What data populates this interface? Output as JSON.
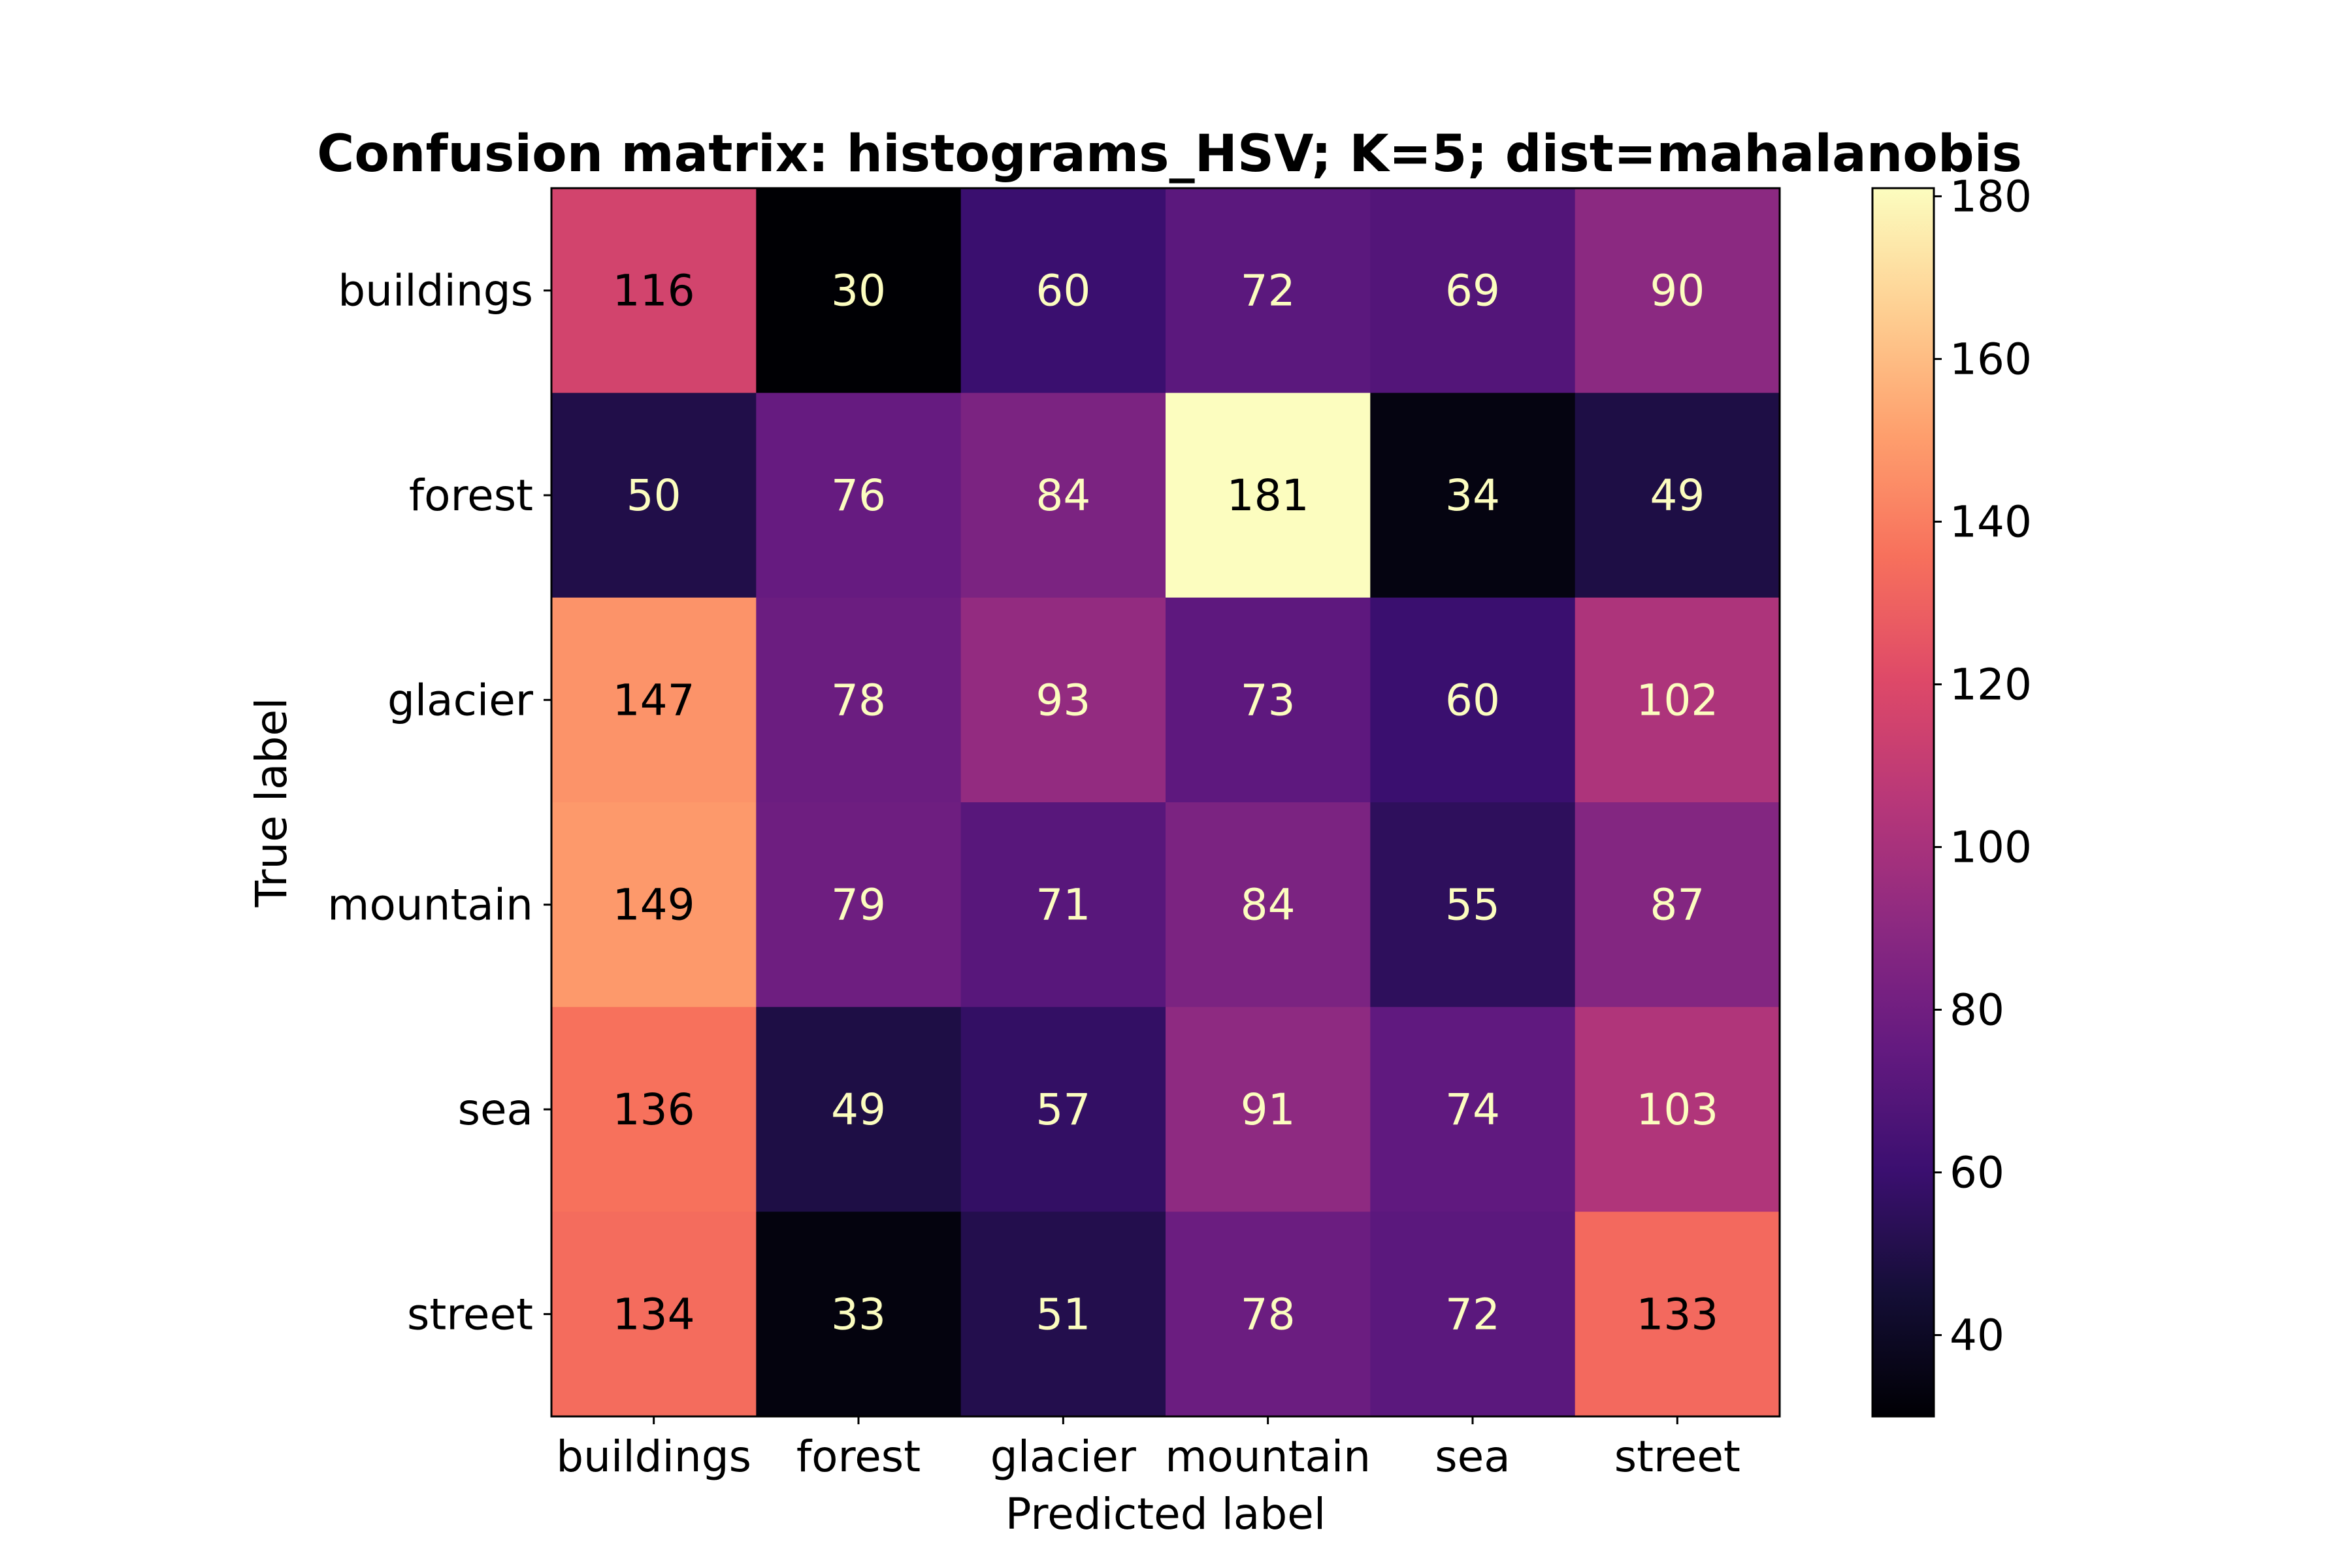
{
  "chart_data": {
    "type": "heatmap",
    "title": "Confusion matrix: histograms_HSV; K=5; dist=mahalanobis",
    "xlabel": "Predicted label",
    "ylabel": "True label",
    "x_categories": [
      "buildings",
      "forest",
      "glacier",
      "mountain",
      "sea",
      "street"
    ],
    "y_categories": [
      "buildings",
      "forest",
      "glacier",
      "mountain",
      "sea",
      "street"
    ],
    "values": [
      [
        116,
        30,
        60,
        72,
        69,
        90
      ],
      [
        50,
        76,
        84,
        181,
        34,
        49
      ],
      [
        147,
        78,
        93,
        73,
        60,
        102
      ],
      [
        149,
        79,
        71,
        84,
        55,
        87
      ],
      [
        136,
        49,
        57,
        91,
        74,
        103
      ],
      [
        134,
        33,
        51,
        78,
        72,
        133
      ]
    ],
    "colormap": "magma",
    "color_range": [
      30,
      181
    ],
    "colorbar_ticks": [
      40,
      60,
      80,
      100,
      120,
      140,
      160,
      180
    ],
    "text_colors": {
      "on_dark": "#fcfdbf",
      "on_light": "#000000"
    },
    "grid": false
  }
}
